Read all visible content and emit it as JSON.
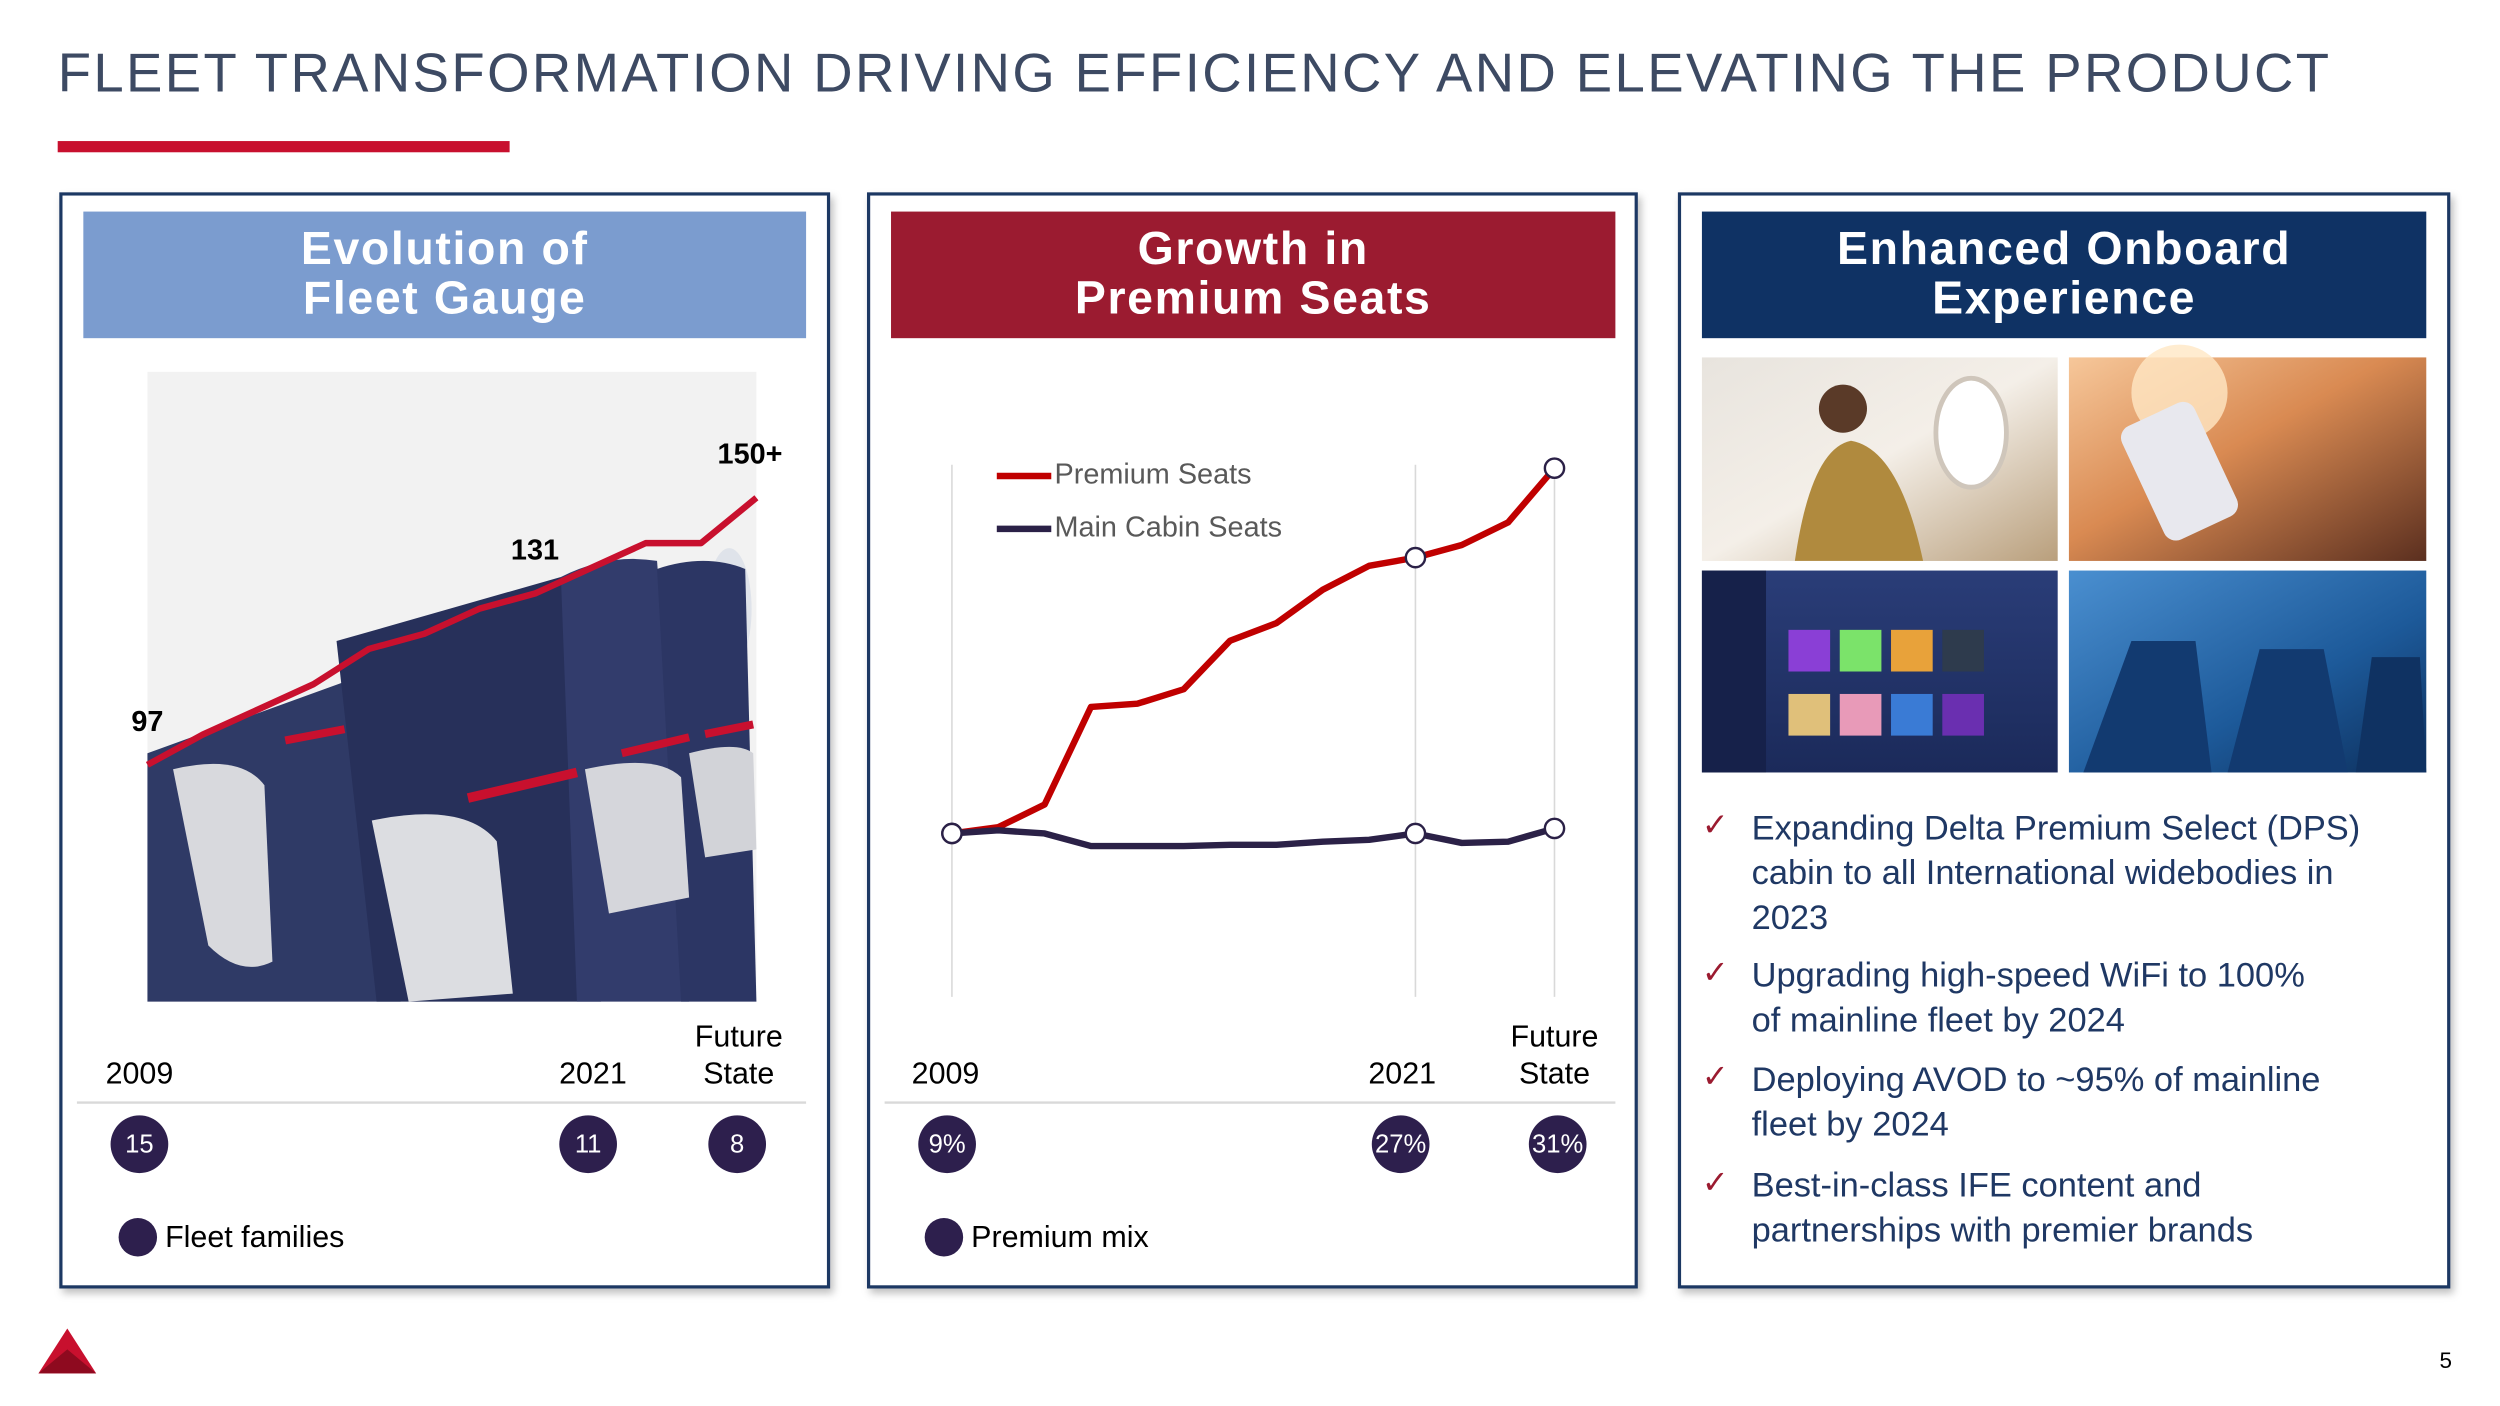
{
  "title": "FLEET TRANSFORMATION DRIVING EFFICIENCY AND ELEVATING THE PRODUCT",
  "page_number": 5,
  "panels": [
    {
      "header": [
        "Evolution of",
        "Fleet Gauge"
      ],
      "header_color": "#7b9ccf",
      "chart_data": {
        "type": "line",
        "ylim": [
          50,
          175
        ],
        "series": [
          {
            "color": "#c8102e",
            "values": [
              97,
              103,
              108,
              113,
              120,
              123,
              128,
              131,
              136,
              141,
              141,
              150
            ],
            "value_labels": [
              "97",
              null,
              null,
              null,
              null,
              null,
              null,
              "131",
              null,
              null,
              null,
              "150+"
            ]
          }
        ]
      },
      "mix": {
        "type": "bubble",
        "name": "Fleet families",
        "color": "#2d1f4d",
        "categories": [
          "2009",
          "2021",
          [
            "Future",
            "State"
          ]
        ],
        "values": [
          15,
          11,
          8
        ]
      }
    },
    {
      "header": [
        "Growth in",
        "Premium Seats"
      ],
      "header_color": "#9b1b30",
      "chart_data": {
        "type": "line",
        "ylim": [
          0,
          100
        ],
        "series": [
          {
            "name": "Premium Seats",
            "color": "#c00000",
            "values": [
              26.7,
              27.7,
              31.3,
              46.8,
              47.3,
              49.6,
              57.3,
              60.1,
              65.4,
              69.2,
              70.5,
              72.5,
              76.1,
              84.7
            ]
          },
          {
            "name": "Main Cabin Seats",
            "color": "#2b2147",
            "values": [
              26.7,
              27.2,
              26.7,
              24.7,
              24.7,
              24.7,
              24.9,
              24.9,
              25.4,
              25.7,
              26.7,
              25.2,
              25.4,
              27.5
            ]
          }
        ]
      },
      "mix": {
        "type": "bubble",
        "name": "Premium mix",
        "color": "#2d1f4d",
        "categories": [
          "2009",
          "2021",
          [
            "Future",
            "State"
          ]
        ],
        "values": [
          9,
          27,
          31
        ],
        "value_labels": [
          "9%",
          "27%",
          "31%"
        ]
      }
    },
    {
      "header": [
        "Enhanced Onboard",
        "Experience"
      ],
      "header_color": "#0f3264",
      "bullets": [
        [
          "Expanding Delta Premium Select (DPS)",
          "cabin to all International widebodies in",
          "2023"
        ],
        [
          "Upgrading high-speed WiFi to 100%",
          "of mainline fleet by 2024"
        ],
        [
          "Deploying AVOD to ~95% of mainline",
          "fleet by 2024"
        ],
        [
          "Best-in-class IFE content and",
          "partnerships with premier brands"
        ]
      ]
    }
  ]
}
